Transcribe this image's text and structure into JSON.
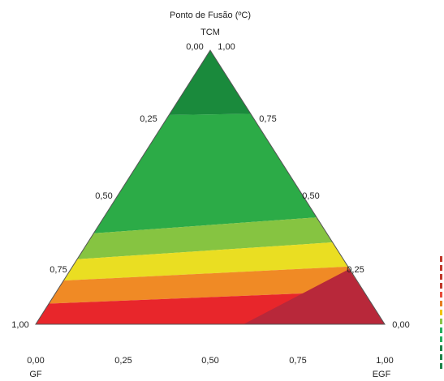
{
  "chart_data": {
    "type": "ternary-contour",
    "title": "Ponto  de Fusão (ºC)",
    "vertices": {
      "top": "TCM",
      "bottom_left": "GF",
      "bottom_right": "EGF"
    },
    "vertex_tick_labels": {
      "top": [
        "0,00",
        "1,00"
      ],
      "bottom_left": "1,00",
      "bottom_right": "0,00"
    },
    "ticks": [
      "0,00",
      "0,25",
      "0,50",
      "0,75",
      "1,00"
    ],
    "left_edge_ticks": [
      "0,25",
      "0,50",
      "0,75"
    ],
    "right_edge_ticks": [
      "0,75",
      "0,50",
      "0,25"
    ],
    "bottom_ticks": [
      "0,00",
      "0,25",
      "0,50",
      "0,75",
      "1,00"
    ],
    "contour_bands": [
      {
        "color": "#b8283a",
        "level": 1
      },
      {
        "color": "#e8262b",
        "level": 2
      },
      {
        "color": "#f08a25",
        "level": 3
      },
      {
        "color": "#eade22",
        "level": 4
      },
      {
        "color": "#86c441",
        "level": 5
      },
      {
        "color": "#2cab47",
        "level": 6
      },
      {
        "color": "#1a8a3c",
        "level": 7
      }
    ],
    "legend_swatch_colors": [
      "#c0392b",
      "#c0392b",
      "#c0392b",
      "#c0392b",
      "#e74c3c",
      "#e67e22",
      "#f1c40f",
      "#8bc34a",
      "#27ae60",
      "#27ae60",
      "#1e8449",
      "#1e8449",
      "#1e8449"
    ]
  }
}
